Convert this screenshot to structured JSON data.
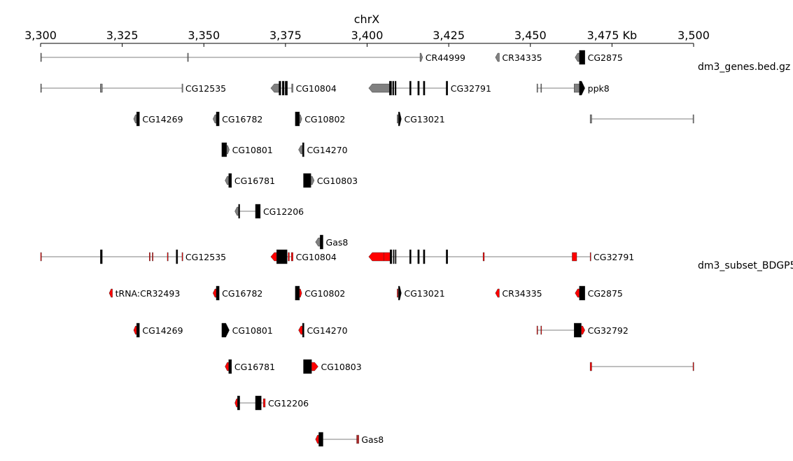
{
  "chromosome": "chrX",
  "axis": {
    "unit": "Kb",
    "start_kb": 3300,
    "end_kb": 3500,
    "tick_step_kb": 25,
    "tick_labels": [
      "3,300",
      "3,325",
      "3,350",
      "3,375",
      "3,400",
      "3,425",
      "3,450",
      "3,475 Kb",
      "3,500"
    ]
  },
  "colors": {
    "gray_track": "#808080",
    "red_track": "#ff0000",
    "axis": "#000000",
    "intron": "#555555"
  },
  "tracks": [
    {
      "name": "dm3_genes.bed.gz",
      "color": "#808080",
      "genes": [
        {
          "label": "CR44999",
          "row": 0,
          "start": 3300.0,
          "end": 3417.0,
          "strand": "+",
          "blocks": [
            [
              3300.0,
              3300.2,
              "t"
            ],
            [
              3345.0,
              3345.2,
              "t"
            ],
            [
              3416.2,
              3417.0,
              "t"
            ]
          ]
        },
        {
          "label": "CR34335",
          "row": 0,
          "start": 3439.3,
          "end": 3440.5,
          "strand": "-",
          "blocks": [
            [
              3439.3,
              3440.5,
              "t"
            ]
          ]
        },
        {
          "label": "CG2875",
          "row": 0,
          "start": 3463.7,
          "end": 3466.7,
          "strand": "-",
          "blocks": [
            [
              3463.7,
              3465.0,
              "t"
            ],
            [
              3465.0,
              3466.7,
              "c"
            ]
          ]
        },
        {
          "label": "CG12535",
          "row": 1,
          "start": 3300.0,
          "end": 3343.5,
          "strand": "-",
          "blocks": [
            [
              3300.0,
              3300.2,
              "t"
            ],
            [
              3318.3,
              3318.9,
              "t"
            ],
            [
              3343.3,
              3343.5,
              "t"
            ]
          ]
        },
        {
          "label": "CG10804",
          "row": 1,
          "start": 3370.5,
          "end": 3377.3,
          "strand": "-",
          "blocks": [
            [
              3370.5,
              3373.0,
              "t"
            ],
            [
              3373.0,
              3373.6,
              "c"
            ],
            [
              3374.0,
              3374.6,
              "c"
            ],
            [
              3374.9,
              3375.6,
              "c"
            ],
            [
              3376.9,
              3377.3,
              "t"
            ]
          ]
        },
        {
          "label": "CG32791",
          "row": 1,
          "start": 3400.5,
          "end": 3424.7,
          "strand": "-",
          "blocks": [
            [
              3400.5,
              3406.8,
              "t"
            ],
            [
              3406.8,
              3407.5,
              "c"
            ],
            [
              3407.8,
              3408.2,
              "c"
            ],
            [
              3408.5,
              3408.9,
              "c"
            ],
            [
              3413.0,
              3413.5,
              "c"
            ],
            [
              3415.5,
              3416.0,
              "c"
            ],
            [
              3417.2,
              3417.7,
              "c"
            ],
            [
              3424.2,
              3424.7,
              "c"
            ]
          ]
        },
        {
          "label": "ppk8",
          "row": 1,
          "start": 3452.0,
          "end": 3466.7,
          "strand": "+",
          "blocks": [
            [
              3452.0,
              3452.2,
              "t"
            ],
            [
              3453.2,
              3453.4,
              "t"
            ],
            [
              3463.4,
              3465.0,
              "t"
            ],
            [
              3465.0,
              3466.7,
              "c"
            ]
          ]
        },
        {
          "label": "CG14269",
          "row": 2,
          "start": 3328.5,
          "end": 3330.3,
          "strand": "-",
          "blocks": [
            [
              3328.5,
              3329.4,
              "t"
            ],
            [
              3329.4,
              3330.3,
              "c"
            ]
          ]
        },
        {
          "label": "CG16782",
          "row": 2,
          "start": 3352.8,
          "end": 3354.7,
          "strand": "-",
          "blocks": [
            [
              3352.8,
              3353.8,
              "t"
            ],
            [
              3353.8,
              3354.7,
              "c"
            ]
          ]
        },
        {
          "label": "CG10802",
          "row": 2,
          "start": 3378.0,
          "end": 3380.0,
          "strand": "+",
          "blocks": [
            [
              3378.0,
              3379.3,
              "c"
            ],
            [
              3379.3,
              3380.0,
              "t"
            ]
          ]
        },
        {
          "label": "CG13021",
          "row": 2,
          "start": 3409.2,
          "end": 3410.5,
          "strand": "+",
          "blocks": [
            [
              3409.2,
              3409.4,
              "t"
            ],
            [
              3409.6,
              3410.5,
              "c"
            ]
          ]
        },
        {
          "label": "",
          "row": 2,
          "start": 3468.3,
          "end": 3500.0,
          "strand": "+",
          "blocks": [
            [
              3468.3,
              3468.8,
              "t"
            ],
            [
              3499.8,
              3500.0,
              "t"
            ]
          ]
        },
        {
          "label": "CG10801",
          "row": 3,
          "start": 3355.5,
          "end": 3357.8,
          "strand": "+",
          "blocks": [
            [
              3355.5,
              3357.0,
              "c"
            ],
            [
              3357.0,
              3357.8,
              "t"
            ]
          ]
        },
        {
          "label": "CG14270",
          "row": 3,
          "start": 3379.0,
          "end": 3380.7,
          "strand": "-",
          "blocks": [
            [
              3379.0,
              3380.2,
              "t"
            ],
            [
              3380.2,
              3380.7,
              "c"
            ]
          ]
        },
        {
          "label": "CG16781",
          "row": 4,
          "start": 3356.5,
          "end": 3358.5,
          "strand": "-",
          "blocks": [
            [
              3356.5,
              3357.6,
              "t"
            ],
            [
              3357.6,
              3358.5,
              "c"
            ]
          ]
        },
        {
          "label": "CG10803",
          "row": 4,
          "start": 3380.5,
          "end": 3383.8,
          "strand": "+",
          "blocks": [
            [
              3380.5,
              3382.8,
              "c"
            ],
            [
              3382.8,
              3383.8,
              "t"
            ]
          ]
        },
        {
          "label": "CG12206",
          "row": 5,
          "start": 3359.5,
          "end": 3367.3,
          "strand": "-",
          "blocks": [
            [
              3359.5,
              3360.6,
              "t"
            ],
            [
              3360.6,
              3361.0,
              "c"
            ],
            [
              3365.8,
              3367.3,
              "c"
            ]
          ]
        },
        {
          "label": "Gas8",
          "row": 6,
          "start": 3384.2,
          "end": 3386.5,
          "strand": "-",
          "blocks": [
            [
              3384.2,
              3385.6,
              "t"
            ],
            [
              3385.6,
              3386.5,
              "c"
            ]
          ]
        }
      ]
    },
    {
      "name": "dm3_subset_BDGP5",
      "color": "#ff0000",
      "genes": [
        {
          "label": "CG12535",
          "row": 0,
          "start": 3300.0,
          "end": 3343.5,
          "strand": "-",
          "blocks": [
            [
              3300.0,
              3300.2,
              "t"
            ],
            [
              3318.3,
              3318.9,
              "c"
            ],
            [
              3333.3,
              3333.5,
              "t"
            ],
            [
              3334.2,
              3334.4,
              "t"
            ],
            [
              3338.8,
              3339.0,
              "t"
            ],
            [
              3341.5,
              3342.0,
              "c"
            ],
            [
              3343.3,
              3343.5,
              "t"
            ]
          ]
        },
        {
          "label": "CG10804",
          "row": 0,
          "start": 3370.5,
          "end": 3377.3,
          "strand": "-",
          "blocks": [
            [
              3370.5,
              3372.3,
              "t"
            ],
            [
              3372.3,
              3375.5,
              "c"
            ],
            [
              3375.8,
              3376.2,
              "t"
            ],
            [
              3376.8,
              3377.3,
              "t"
            ]
          ]
        },
        {
          "label": "CG32791",
          "row": 0,
          "start": 3400.5,
          "end": 3468.5,
          "strand": "-",
          "blocks": [
            [
              3400.5,
              3405.2,
              "t"
            ],
            [
              3405.2,
              3407.0,
              "t"
            ],
            [
              3407.0,
              3407.6,
              "c"
            ],
            [
              3408.0,
              3408.3,
              "c"
            ],
            [
              3408.6,
              3408.9,
              "c"
            ],
            [
              3413.0,
              3413.5,
              "c"
            ],
            [
              3415.5,
              3416.0,
              "c"
            ],
            [
              3417.2,
              3417.7,
              "c"
            ],
            [
              3424.2,
              3424.7,
              "c"
            ],
            [
              3435.5,
              3435.9,
              "t"
            ],
            [
              3462.8,
              3464.2,
              "t"
            ],
            [
              3468.3,
              3468.5,
              "t"
            ]
          ]
        },
        {
          "label": "tRNA:CR32493",
          "row": 1,
          "start": 3321.0,
          "end": 3322.0,
          "strand": "-",
          "blocks": [
            [
              3321.0,
              3322.0,
              "t"
            ]
          ]
        },
        {
          "label": "CG16782",
          "row": 1,
          "start": 3352.8,
          "end": 3354.7,
          "strand": "-",
          "blocks": [
            [
              3352.8,
              3353.8,
              "t"
            ],
            [
              3353.8,
              3354.7,
              "c"
            ]
          ]
        },
        {
          "label": "CG10802",
          "row": 1,
          "start": 3378.0,
          "end": 3380.0,
          "strand": "+",
          "blocks": [
            [
              3378.0,
              3379.3,
              "c"
            ],
            [
              3379.3,
              3380.0,
              "t"
            ]
          ]
        },
        {
          "label": "CG13021",
          "row": 1,
          "start": 3409.2,
          "end": 3410.5,
          "strand": "+",
          "blocks": [
            [
              3409.2,
              3409.4,
              "t"
            ],
            [
              3409.6,
              3410.5,
              "c"
            ]
          ]
        },
        {
          "label": "CR34335",
          "row": 1,
          "start": 3439.3,
          "end": 3440.5,
          "strand": "-",
          "blocks": [
            [
              3439.3,
              3440.5,
              "t"
            ]
          ]
        },
        {
          "label": "CG2875",
          "row": 1,
          "start": 3463.7,
          "end": 3466.7,
          "strand": "-",
          "blocks": [
            [
              3463.7,
              3465.0,
              "t"
            ],
            [
              3465.0,
              3466.7,
              "c"
            ]
          ]
        },
        {
          "label": "CG14269",
          "row": 2,
          "start": 3328.5,
          "end": 3330.3,
          "strand": "-",
          "blocks": [
            [
              3328.5,
              3329.4,
              "t"
            ],
            [
              3329.4,
              3330.3,
              "c"
            ]
          ]
        },
        {
          "label": "CG10801",
          "row": 2,
          "start": 3355.5,
          "end": 3357.8,
          "strand": "+",
          "blocks": [
            [
              3355.5,
              3357.8,
              "c"
            ]
          ]
        },
        {
          "label": "CG14270",
          "row": 2,
          "start": 3379.0,
          "end": 3380.7,
          "strand": "-",
          "blocks": [
            [
              3379.0,
              3380.2,
              "t"
            ],
            [
              3380.2,
              3380.7,
              "c"
            ]
          ]
        },
        {
          "label": "CG32792",
          "row": 2,
          "start": 3452.0,
          "end": 3466.7,
          "strand": "+",
          "blocks": [
            [
              3452.0,
              3452.2,
              "t"
            ],
            [
              3453.2,
              3453.4,
              "t"
            ],
            [
              3463.4,
              3465.6,
              "c"
            ],
            [
              3465.6,
              3466.7,
              "t"
            ]
          ]
        },
        {
          "label": "CG16781",
          "row": 3,
          "start": 3356.5,
          "end": 3358.5,
          "strand": "-",
          "blocks": [
            [
              3356.5,
              3357.6,
              "t"
            ],
            [
              3357.6,
              3358.5,
              "c"
            ]
          ]
        },
        {
          "label": "CG10803",
          "row": 3,
          "start": 3380.5,
          "end": 3385.0,
          "strand": "+",
          "blocks": [
            [
              3380.5,
              3383.0,
              "c"
            ],
            [
              3383.0,
              3385.0,
              "t"
            ]
          ]
        },
        {
          "label": "",
          "row": 3,
          "start": 3468.3,
          "end": 3500.0,
          "strand": "+",
          "blocks": [
            [
              3468.3,
              3468.8,
              "t"
            ],
            [
              3499.8,
              3500.0,
              "t"
            ]
          ]
        },
        {
          "label": "CG12206",
          "row": 4,
          "start": 3359.5,
          "end": 3368.8,
          "strand": "-",
          "blocks": [
            [
              3359.5,
              3360.3,
              "t"
            ],
            [
              3360.3,
              3361.0,
              "c"
            ],
            [
              3365.8,
              3367.6,
              "c"
            ],
            [
              3368.2,
              3368.8,
              "t"
            ]
          ]
        },
        {
          "label": "Gas8",
          "row": 5,
          "start": 3384.2,
          "end": 3397.4,
          "strand": "-",
          "blocks": [
            [
              3384.2,
              3385.2,
              "t"
            ],
            [
              3385.2,
              3386.5,
              "c"
            ],
            [
              3396.8,
              3397.0,
              "t"
            ],
            [
              3397.2,
              3397.4,
              "t"
            ]
          ]
        }
      ]
    }
  ]
}
